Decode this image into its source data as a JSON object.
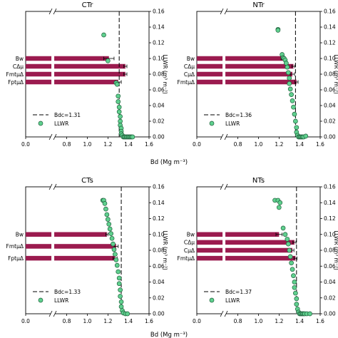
{
  "figure": {
    "shared_xlabel_top": "Bd (Mg m⁻³)",
    "shared_xlabel_bottom": "Bd (Mg m⁻³)",
    "ylabel_right": "LLWR (m³ m⁻³)"
  },
  "colors": {
    "bar": "#9b1b4f",
    "point_fill": "#5fd08e",
    "point_stroke": "#1f5f3c"
  },
  "chart_data": [
    {
      "type": "scatter",
      "title": "CTr",
      "xlim": [
        0.0,
        1.6
      ],
      "ylim": [
        0.0,
        0.16
      ],
      "xticks": [
        "0.0",
        "0.8",
        "1.0",
        "1.2",
        "1.4",
        "1.6"
      ],
      "yticks": [
        "0.00",
        "0.02",
        "0.04",
        "0.06",
        "0.08",
        "0.10",
        "0.12",
        "0.14",
        "0.16"
      ],
      "axis_break": true,
      "bdc": 1.31,
      "legend": [
        "Bdc=1.31",
        "LLWR"
      ],
      "bars": [
        {
          "label": "Bw",
          "value": 1.21,
          "err": 0.05,
          "y": 0.1
        },
        {
          "label": "CΔμ",
          "value": 1.37,
          "err": 0.015,
          "y": 0.09
        },
        {
          "label": "FmtμΔ",
          "value": 1.37,
          "err": 0.015,
          "y": 0.08
        },
        {
          "label": "FptμΔ",
          "value": 1.3,
          "err": 0.03,
          "y": 0.07
        }
      ],
      "points": [
        [
          1.16,
          0.13
        ],
        [
          1.2,
          0.097
        ],
        [
          1.28,
          0.069
        ],
        [
          1.29,
          0.067
        ],
        [
          1.3,
          0.052
        ],
        [
          1.3,
          0.045
        ],
        [
          1.31,
          0.038
        ],
        [
          1.31,
          0.032
        ],
        [
          1.32,
          0.026
        ],
        [
          1.32,
          0.02
        ],
        [
          1.32,
          0.015
        ],
        [
          1.33,
          0.011
        ],
        [
          1.33,
          0.007
        ],
        [
          1.33,
          0.004
        ],
        [
          1.34,
          0.002
        ],
        [
          1.35,
          0.0
        ],
        [
          1.36,
          0.0
        ],
        [
          1.37,
          0.0
        ],
        [
          1.38,
          0.0
        ],
        [
          1.39,
          0.0
        ],
        [
          1.4,
          0.0
        ],
        [
          1.41,
          0.0
        ],
        [
          1.42,
          0.0
        ],
        [
          1.43,
          0.0
        ],
        [
          1.44,
          0.0
        ]
      ]
    },
    {
      "type": "scatter",
      "title": "NTr",
      "xlim": [
        0.0,
        1.6
      ],
      "ylim": [
        0.0,
        0.16
      ],
      "xticks": [
        "0.0",
        "0.8",
        "1.0",
        "1.2",
        "1.4",
        "1.6"
      ],
      "yticks": [
        "0.00",
        "0.02",
        "0.04",
        "0.06",
        "0.08",
        "0.10",
        "0.12",
        "0.14",
        "0.16"
      ],
      "axis_break": true,
      "bdc": 1.36,
      "legend": [
        "Bdc=1.36",
        "LLWR"
      ],
      "bars": [
        {
          "label": "Bw",
          "value": 1.24,
          "err": 0.02,
          "y": 0.1
        },
        {
          "label": "CΔμ",
          "value": 1.34,
          "err": 0.015,
          "y": 0.09
        },
        {
          "label": "CμΔ",
          "value": 1.33,
          "err": 0.02,
          "y": 0.08
        },
        {
          "label": "FmtμΔ",
          "value": 1.37,
          "err": 0.015,
          "y": 0.07
        }
      ],
      "points": [
        [
          1.19,
          0.137
        ],
        [
          1.19,
          0.136
        ],
        [
          1.23,
          0.105
        ],
        [
          1.24,
          0.101
        ],
        [
          1.25,
          0.1
        ],
        [
          1.26,
          0.098
        ],
        [
          1.27,
          0.094
        ],
        [
          1.28,
          0.089
        ],
        [
          1.29,
          0.082
        ],
        [
          1.3,
          0.075
        ],
        [
          1.3,
          0.068
        ],
        [
          1.31,
          0.061
        ],
        [
          1.32,
          0.054
        ],
        [
          1.33,
          0.046
        ],
        [
          1.34,
          0.038
        ],
        [
          1.35,
          0.029
        ],
        [
          1.36,
          0.02
        ],
        [
          1.37,
          0.012
        ],
        [
          1.37,
          0.006
        ],
        [
          1.38,
          0.002
        ],
        [
          1.39,
          0.0
        ],
        [
          1.4,
          0.0
        ],
        [
          1.41,
          0.0
        ],
        [
          1.42,
          0.0
        ],
        [
          1.43,
          0.0
        ],
        [
          1.44,
          0.0
        ],
        [
          1.46,
          0.001
        ]
      ]
    },
    {
      "type": "scatter",
      "title": "CTs",
      "xlim": [
        0.0,
        1.6
      ],
      "ylim": [
        0.0,
        0.16
      ],
      "xticks": [
        "0.0",
        "0.8",
        "1.0",
        "1.2",
        "1.4",
        "1.6"
      ],
      "yticks": [
        "0.00",
        "0.02",
        "0.04",
        "0.06",
        "0.08",
        "0.10",
        "0.12",
        "0.14",
        "0.16"
      ],
      "axis_break": true,
      "bdc": 1.33,
      "legend": [
        "Bdc=1.33",
        "LLWR"
      ],
      "bars": [
        {
          "label": "Bw",
          "value": 1.19,
          "err": 0.01,
          "y": 0.1
        },
        {
          "label": "FmtμΔ",
          "value": 1.28,
          "err": 0.02,
          "y": 0.085
        },
        {
          "label": "FptμΔ",
          "value": 1.27,
          "err": 0.02,
          "y": 0.07
        }
      ],
      "points": [
        [
          1.15,
          0.143
        ],
        [
          1.16,
          0.143
        ],
        [
          1.17,
          0.139
        ],
        [
          1.18,
          0.132
        ],
        [
          1.19,
          0.125
        ],
        [
          1.2,
          0.119
        ],
        [
          1.21,
          0.113
        ],
        [
          1.22,
          0.107
        ],
        [
          1.23,
          0.101
        ],
        [
          1.24,
          0.095
        ],
        [
          1.25,
          0.088
        ],
        [
          1.26,
          0.081
        ],
        [
          1.27,
          0.075
        ],
        [
          1.28,
          0.068
        ],
        [
          1.29,
          0.061
        ],
        [
          1.3,
          0.053
        ],
        [
          1.31,
          0.045
        ],
        [
          1.31,
          0.038
        ],
        [
          1.32,
          0.03
        ],
        [
          1.32,
          0.022
        ],
        [
          1.33,
          0.015
        ],
        [
          1.33,
          0.009
        ],
        [
          1.34,
          0.004
        ],
        [
          1.35,
          0.001
        ],
        [
          1.37,
          0.0
        ],
        [
          1.39,
          0.0
        ]
      ]
    },
    {
      "type": "scatter",
      "title": "NTs",
      "xlim": [
        0.0,
        1.6
      ],
      "ylim": [
        0.0,
        0.16
      ],
      "xticks": [
        "0.0",
        "0.8",
        "1.0",
        "1.2",
        "1.4",
        "1.6"
      ],
      "yticks": [
        "0.00",
        "0.02",
        "0.04",
        "0.06",
        "0.08",
        "0.10",
        "0.12",
        "0.14",
        "0.16"
      ],
      "axis_break": true,
      "bdc": 1.37,
      "legend": [
        "Bdc=1.37",
        "LLWR"
      ],
      "bars": [
        {
          "label": "Bw",
          "value": 1.2,
          "err": 0.03,
          "y": 0.1
        },
        {
          "label": "CΔμ",
          "value": 1.35,
          "err": 0.015,
          "y": 0.09
        },
        {
          "label": "CμΔ",
          "value": 1.33,
          "err": 0.015,
          "y": 0.08
        },
        {
          "label": "FmtμΔ",
          "value": 1.36,
          "err": 0.015,
          "y": 0.07
        }
      ],
      "points": [
        [
          1.16,
          0.143
        ],
        [
          1.19,
          0.143
        ],
        [
          1.21,
          0.14
        ],
        [
          1.2,
          0.134
        ],
        [
          1.24,
          0.108
        ],
        [
          1.26,
          0.1
        ],
        [
          1.28,
          0.094
        ],
        [
          1.29,
          0.088
        ],
        [
          1.3,
          0.08
        ],
        [
          1.31,
          0.072
        ],
        [
          1.32,
          0.064
        ],
        [
          1.33,
          0.056
        ],
        [
          1.34,
          0.048
        ],
        [
          1.35,
          0.04
        ],
        [
          1.35,
          0.033
        ],
        [
          1.36,
          0.026
        ],
        [
          1.37,
          0.019
        ],
        [
          1.37,
          0.012
        ],
        [
          1.38,
          0.006
        ],
        [
          1.39,
          0.002
        ],
        [
          1.4,
          0.0
        ],
        [
          1.41,
          0.0
        ],
        [
          1.42,
          0.0
        ],
        [
          1.43,
          0.0
        ],
        [
          1.44,
          0.0
        ],
        [
          1.45,
          0.0
        ],
        [
          1.47,
          0.0
        ],
        [
          1.5,
          0.0
        ]
      ]
    }
  ]
}
